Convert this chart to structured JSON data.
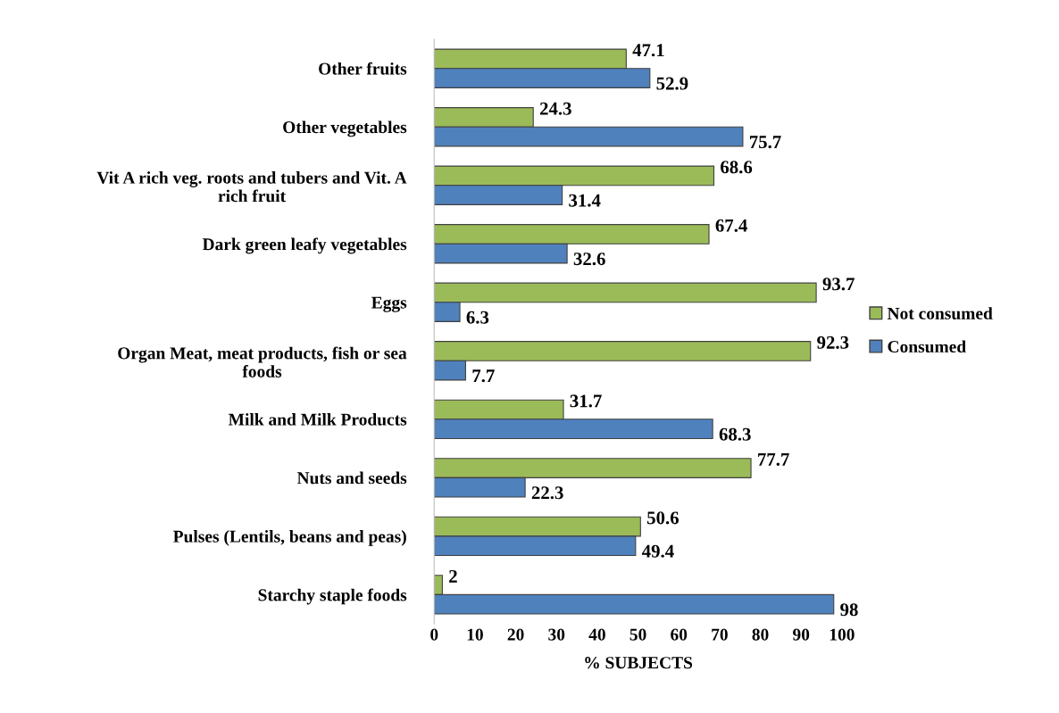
{
  "chart_data": {
    "type": "bar",
    "orientation": "horizontal",
    "xlabel": "% SUBJECTS",
    "categories": [
      "Other fruits",
      "Other vegetables",
      "Vit A rich veg. roots and tubers and Vit. A\nrich fruit",
      "Dark green leafy vegetables",
      "Eggs",
      "Organ Meat, meat products, fish or sea\nfoods",
      "Milk and Milk Products",
      "Nuts and seeds",
      "Pulses (Lentils, beans and peas)",
      "Starchy staple foods"
    ],
    "series": [
      {
        "name": "Not consumed",
        "color": "#9bbb59",
        "values": [
          47.1,
          24.3,
          68.6,
          67.4,
          93.7,
          92.3,
          31.7,
          77.7,
          50.6,
          2
        ]
      },
      {
        "name": "Consumed",
        "color": "#4f81bd",
        "values": [
          52.9,
          75.7,
          31.4,
          32.6,
          6.3,
          7.7,
          68.3,
          22.3,
          49.4,
          98
        ]
      }
    ],
    "xlim": [
      0,
      100
    ],
    "xticks": [
      0,
      10,
      20,
      30,
      40,
      50,
      60,
      70,
      80,
      90,
      100
    ],
    "data_labels": true,
    "grid": false,
    "legend": "right"
  }
}
